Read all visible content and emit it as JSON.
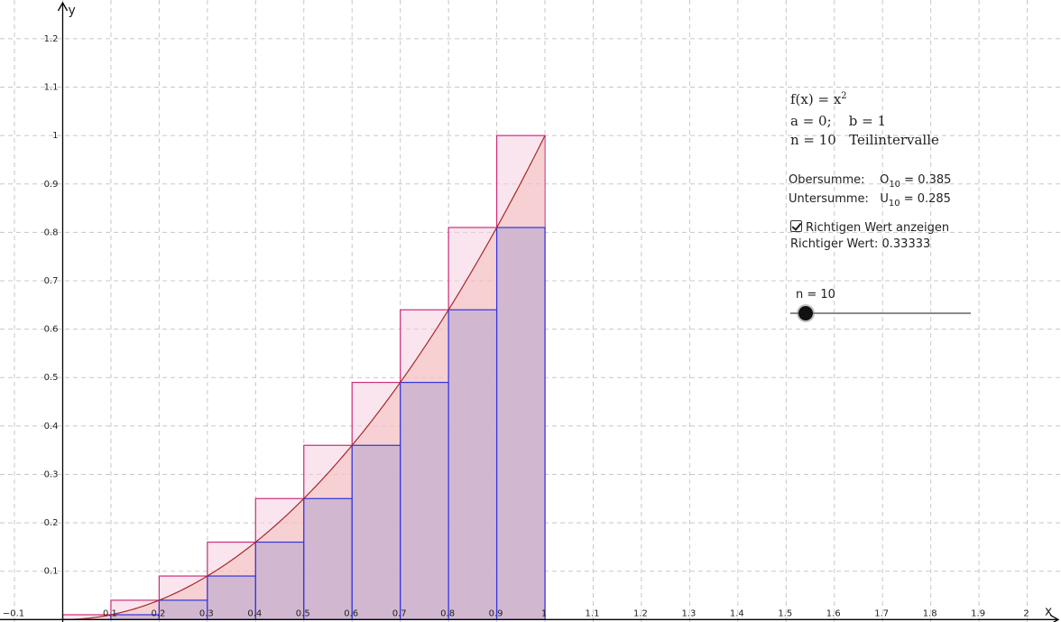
{
  "function": {
    "name": "f(x) = ",
    "base": "x",
    "exponent": "2"
  },
  "interval": {
    "a_label": "a = 0;",
    "b_label": "b = 1"
  },
  "subintervals": {
    "n_label": "n = 10",
    "suffix": "Teilintervalle"
  },
  "sums": {
    "upper_label": "Obersumme:",
    "upper_symbol": "O",
    "upper_index": "10",
    "upper_value": " = 0.385",
    "lower_label": "Untersumme:",
    "lower_symbol": "U",
    "lower_index": "10",
    "lower_value": " = 0.285"
  },
  "checkbox": {
    "label": "Richtigen Wert anzeigen",
    "checked": true
  },
  "true_value": {
    "text": "Richtiger Wert: 0.33333"
  },
  "slider": {
    "label": "n = 10",
    "value": 10
  },
  "axes": {
    "x_label": "x",
    "y_label": "y"
  },
  "chart_data": {
    "type": "area",
    "a": 0,
    "b": 1,
    "n": 10,
    "function_exponent": 2,
    "x_range": [
      -0.13,
      2.07
    ],
    "y_range": [
      -0.005,
      1.28
    ],
    "x_ticks": [
      -0.1,
      0.1,
      0.2,
      0.3,
      0.4,
      0.5,
      0.6,
      0.7,
      0.8,
      0.9,
      1,
      1.1,
      1.2,
      1.3,
      1.4,
      1.5,
      1.6,
      1.7,
      1.8,
      1.9,
      2
    ],
    "x_tick_labels": [
      "−0.1",
      "0.1",
      "0.2",
      "0.3",
      "0.4",
      "0.5",
      "0.6",
      "0.7",
      "0.8",
      "0.9",
      "1",
      "1.1",
      "1.2",
      "1.3",
      "1.4",
      "1.5",
      "1.6",
      "1.7",
      "1.8",
      "1.9",
      "2"
    ],
    "y_ticks": [
      0.1,
      0.2,
      0.3,
      0.4,
      0.5,
      0.6,
      0.7,
      0.8,
      0.9,
      1,
      1.1,
      1.2
    ],
    "y_tick_labels": [
      "0.1",
      "0.2",
      "0.3",
      "0.4",
      "0.5",
      "0.6",
      "0.7",
      "0.8",
      "0.9",
      "1",
      "1.1",
      "1.2"
    ],
    "upper_rects": [
      0.01,
      0.04,
      0.09,
      0.16,
      0.25,
      0.36,
      0.49,
      0.64,
      0.81,
      1.0
    ],
    "lower_rects": [
      0,
      0.01,
      0.04,
      0.09,
      0.16,
      0.25,
      0.36,
      0.49,
      0.64,
      0.81
    ],
    "grid": true,
    "colors": {
      "upper_stroke": "#cc2e7a",
      "upper_fill": "#f5cfe2",
      "lower_stroke": "#3333dd",
      "lower_fill": "#c4b0cf",
      "curve": "#a52a2a",
      "area_fill": "#f2b6b0",
      "grid": "#c8c8c8"
    }
  }
}
